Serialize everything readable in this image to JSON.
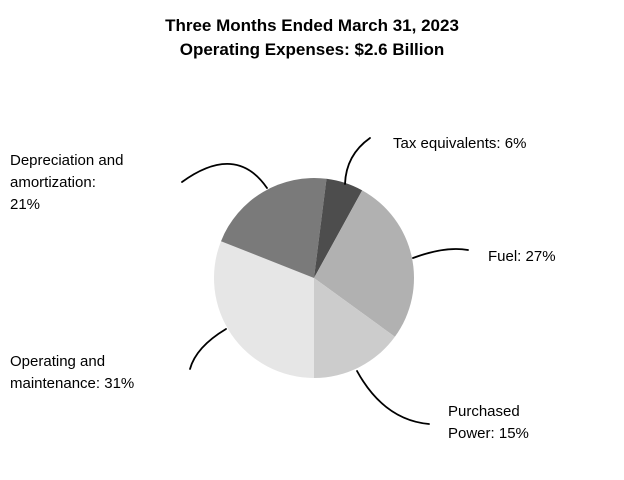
{
  "title": {
    "text": "Three Months Ended March 31, 2023\nOperating Expenses: $2.6 Billion"
  },
  "chart_data": {
    "type": "pie",
    "title": "Three Months Ended March 31, 2023",
    "subtitle": "Operating Expenses: $2.6 Billion",
    "units": "percent of operating expenses",
    "direction": "clockwise",
    "start_angle_clockwise_from_top_deg": 180,
    "slices": [
      {
        "label": "Operating and maintenance",
        "value": 31,
        "color": "#e6e6e6"
      },
      {
        "label": "Depreciation and amortization",
        "value": 21,
        "color": "#7a7a7a"
      },
      {
        "label": "Tax equivalents",
        "value": 6,
        "color": "#4d4d4d"
      },
      {
        "label": "Fuel",
        "value": 27,
        "color": "#b1b1b1"
      },
      {
        "label": "Purchased Power",
        "value": 15,
        "color": "#cccccc"
      }
    ],
    "legend_position": "callout-labels"
  },
  "labels": {
    "depreciation": "Depreciation and\namortization:\n21%",
    "tax": "Tax equivalents: 6%",
    "fuel": "Fuel: 27%",
    "operating": "Operating and\nmaintenance: 31%",
    "purchased": "Purchased\nPower: 15%"
  },
  "colors": {
    "background": "#ffffff",
    "text": "#000000",
    "callout_line": "#000000"
  }
}
